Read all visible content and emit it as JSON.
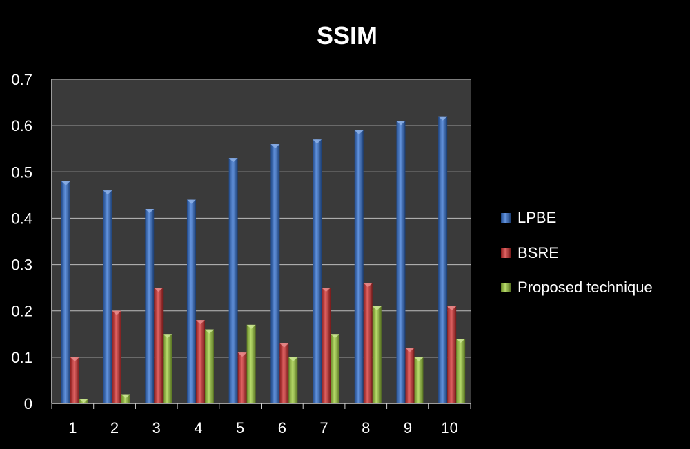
{
  "chart_data": {
    "type": "bar",
    "title": "SSIM",
    "xlabel": "",
    "ylabel": "",
    "ylim": [
      0,
      0.7
    ],
    "yticks": [
      "0",
      "0.1",
      "0.2",
      "0.3",
      "0.4",
      "0.5",
      "0.6",
      "0.7"
    ],
    "categories": [
      "1",
      "2",
      "3",
      "4",
      "5",
      "6",
      "7",
      "8",
      "9",
      "10"
    ],
    "series": [
      {
        "name": "LPBE",
        "color": "#2f6fd1",
        "values": [
          0.48,
          0.46,
          0.42,
          0.44,
          0.53,
          0.56,
          0.57,
          0.59,
          0.61,
          0.62
        ]
      },
      {
        "name": "BSRE",
        "color": "#d62d2d",
        "values": [
          0.1,
          0.2,
          0.25,
          0.18,
          0.11,
          0.13,
          0.25,
          0.26,
          0.12,
          0.21
        ]
      },
      {
        "name": "Proposed technique",
        "color": "#9fcf3a",
        "values": [
          0.01,
          0.02,
          0.15,
          0.16,
          0.17,
          0.1,
          0.15,
          0.21,
          0.1,
          0.14
        ]
      }
    ],
    "grid": true,
    "legend": "right",
    "colors": {
      "plot_bg": "#3a3a3a",
      "grid": "#bdbdbd",
      "axis": "#cfcfcf"
    }
  }
}
